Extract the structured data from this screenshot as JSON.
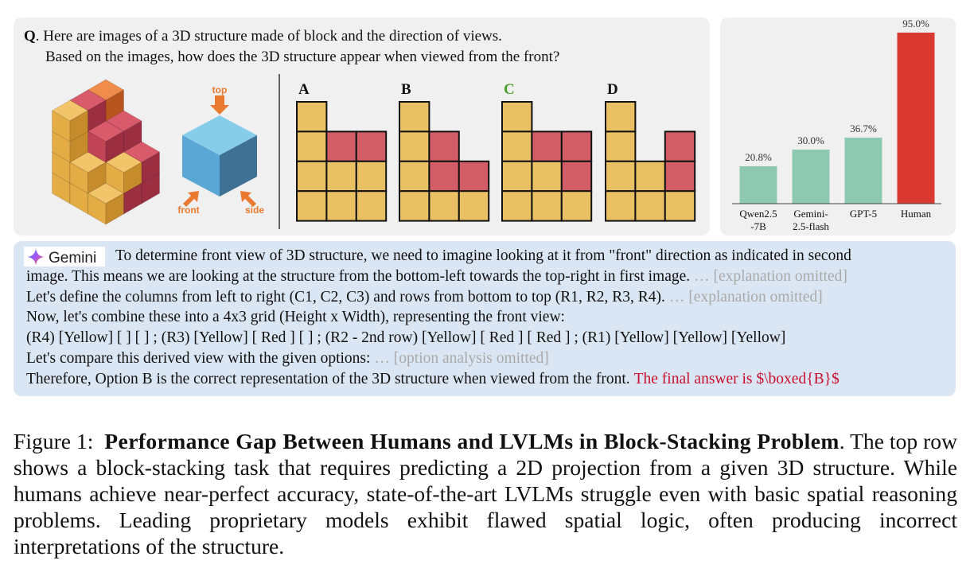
{
  "question": {
    "marker": "Q",
    "line1": ". Here are images of a 3D structure made of block and the direction of views.",
    "line2": "Based on the images, how does the 3D structure appear when viewed from the front?"
  },
  "views": {
    "top": "top",
    "front": "front",
    "side": "side"
  },
  "options": [
    "A",
    "B",
    "C",
    "D"
  ],
  "chart_data": {
    "type": "bar",
    "categories": [
      "Qwen2.5\n-7B",
      "Gemini-\n2.5-flash",
      "GPT-5",
      "Human"
    ],
    "values": [
      20.8,
      30.0,
      36.7,
      95.0
    ],
    "value_labels": [
      "20.8%",
      "30.0%",
      "36.7%",
      "95.0%"
    ],
    "colors": [
      "#8cc9b0",
      "#8cc9b0",
      "#8cc9b0",
      "#d9392e"
    ]
  },
  "response": {
    "brand": "Gemini",
    "lines": [
      [
        {
          "text": "To determine front view of 3D structure, we need to imagine looking at it from \"front\" direction as indicated in second"
        }
      ],
      [
        {
          "text": "image. This means we are looking at the structure from the bottom-left towards the top-right in first image."
        },
        {
          "text": "… [explanation omitted]",
          "color": "#a9a9a9"
        }
      ],
      [
        {
          "text": "Let's define the columns from left to right (C1, C2, C3) and rows from bottom to top (R1, R2, R3, R4)."
        },
        {
          "text": "… [explanation omitted]",
          "color": "#a9a9a9"
        }
      ],
      [
        {
          "text": "Now, let's combine these into a 4x3 grid (Height x Width), representing the front view:"
        }
      ],
      [
        {
          "text": "(R4) [Yellow] [ ] [ ] ; (R3) [Yellow] [  Red  ] [ ] ; (R2 - 2nd row) [Yellow] [  Red  ] [  Red  ] ; (R1) [Yellow] [Yellow] [Yellow]"
        }
      ],
      [
        {
          "text": "Let's compare this derived view with the given options:"
        },
        {
          "text": "… [option analysis omitted]",
          "color": "#a9a9a9"
        }
      ],
      [
        {
          "text": "Therefore, Option B is the correct representation of the 3D structure when viewed from the front."
        },
        {
          "text": "The final answer is $\\boxed{B}$",
          "color": "#c8102e"
        }
      ]
    ]
  },
  "caption": {
    "label": "Figure 1:",
    "title": "Performance Gap Between Humans and LVLMs in Block-Stacking Problem",
    "text": ". The top row shows a block-stacking task that requires predicting a 2D projection from a given 3D structure. While humans achieve near-perfect accuracy, state-of-the-art LVLMs struggle even with basic spatial reasoning problems. Leading proprietary models exhibit flawed spatial logic, often producing incorrect interpretations of the structure."
  }
}
